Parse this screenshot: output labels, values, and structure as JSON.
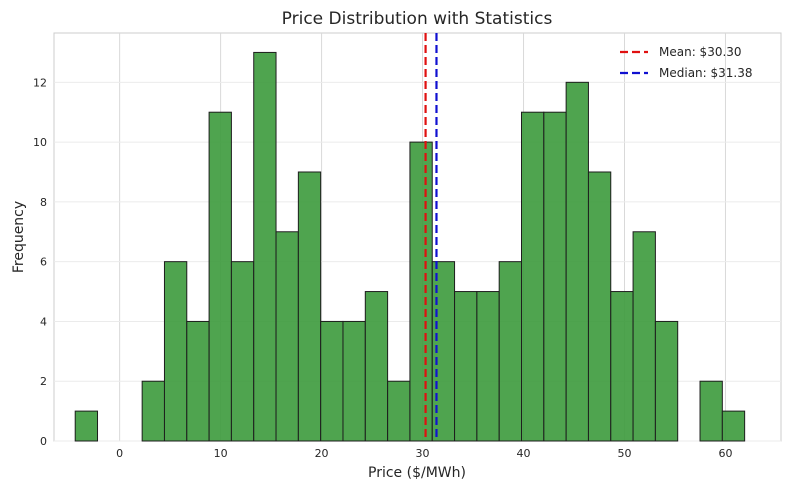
{
  "chart_data": {
    "type": "histogram",
    "title": "Price Distribution with Statistics",
    "xlabel": "Price ($/MWh)",
    "ylabel": "Frequency",
    "xlim": [
      -6.5,
      65.5
    ],
    "ylim": [
      0,
      13.65
    ],
    "xticks": [
      0,
      10,
      20,
      30,
      40,
      50,
      60
    ],
    "yticks": [
      0,
      2,
      4,
      6,
      8,
      10,
      12
    ],
    "grid": true,
    "legend_position": "top-right",
    "bar_color": "#3c9a3c",
    "bar_edge_color": "#1e1e1e",
    "bin_start": -4.4,
    "bin_width": 2.21,
    "counts": [
      1,
      0,
      0,
      2,
      6,
      4,
      11,
      6,
      13,
      7,
      9,
      4,
      4,
      5,
      2,
      10,
      6,
      5,
      5,
      6,
      11,
      11,
      12,
      9,
      5,
      7,
      4,
      0,
      2,
      1
    ],
    "lines": [
      {
        "name": "Mean: $30.30",
        "value": 30.3,
        "color": "#e01010"
      },
      {
        "name": "Median: $31.38",
        "value": 31.38,
        "color": "#1010d0"
      }
    ]
  }
}
